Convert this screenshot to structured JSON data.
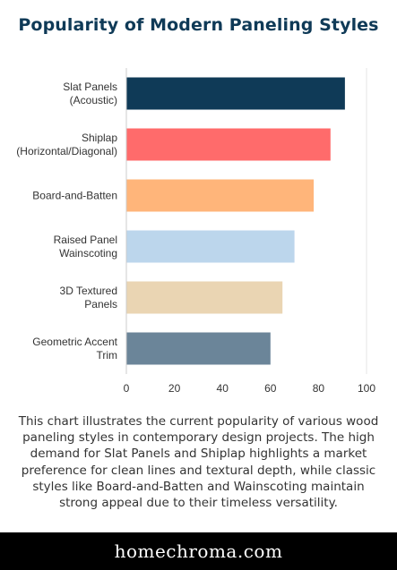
{
  "chart_data": {
    "type": "bar",
    "orientation": "horizontal",
    "title": "Popularity of Modern Paneling Styles",
    "categories": [
      [
        "Slat Panels",
        "(Acoustic)"
      ],
      [
        "Shiplap",
        "(Horizontal/Diagonal)"
      ],
      [
        "Board-and-Batten"
      ],
      [
        "Raised Panel",
        "Wainscoting"
      ],
      [
        "3D Textured",
        "Panels"
      ],
      [
        "Geometric Accent",
        "Trim"
      ]
    ],
    "values": [
      91,
      85,
      78,
      70,
      65,
      60
    ],
    "colors": [
      "#0f3a57",
      "#ff6b6b",
      "#ffb57a",
      "#bcd6ec",
      "#ead5b3",
      "#6b8599"
    ],
    "xlim": [
      0,
      100
    ],
    "xticks": [
      0,
      20,
      40,
      60,
      80,
      100
    ],
    "xlabel": "",
    "ylabel": "",
    "grid": false,
    "legend": "none"
  },
  "description": "This chart illustrates the current popularity of various wood paneling styles in contemporary design projects. The high demand for Slat Panels and Shiplap highlights a market preference for clean lines and textural depth, while classic styles like Board-and-Batten and Wainscoting maintain strong appeal due to their timeless versatility.",
  "footer": {
    "brand": "homechroma.com"
  }
}
